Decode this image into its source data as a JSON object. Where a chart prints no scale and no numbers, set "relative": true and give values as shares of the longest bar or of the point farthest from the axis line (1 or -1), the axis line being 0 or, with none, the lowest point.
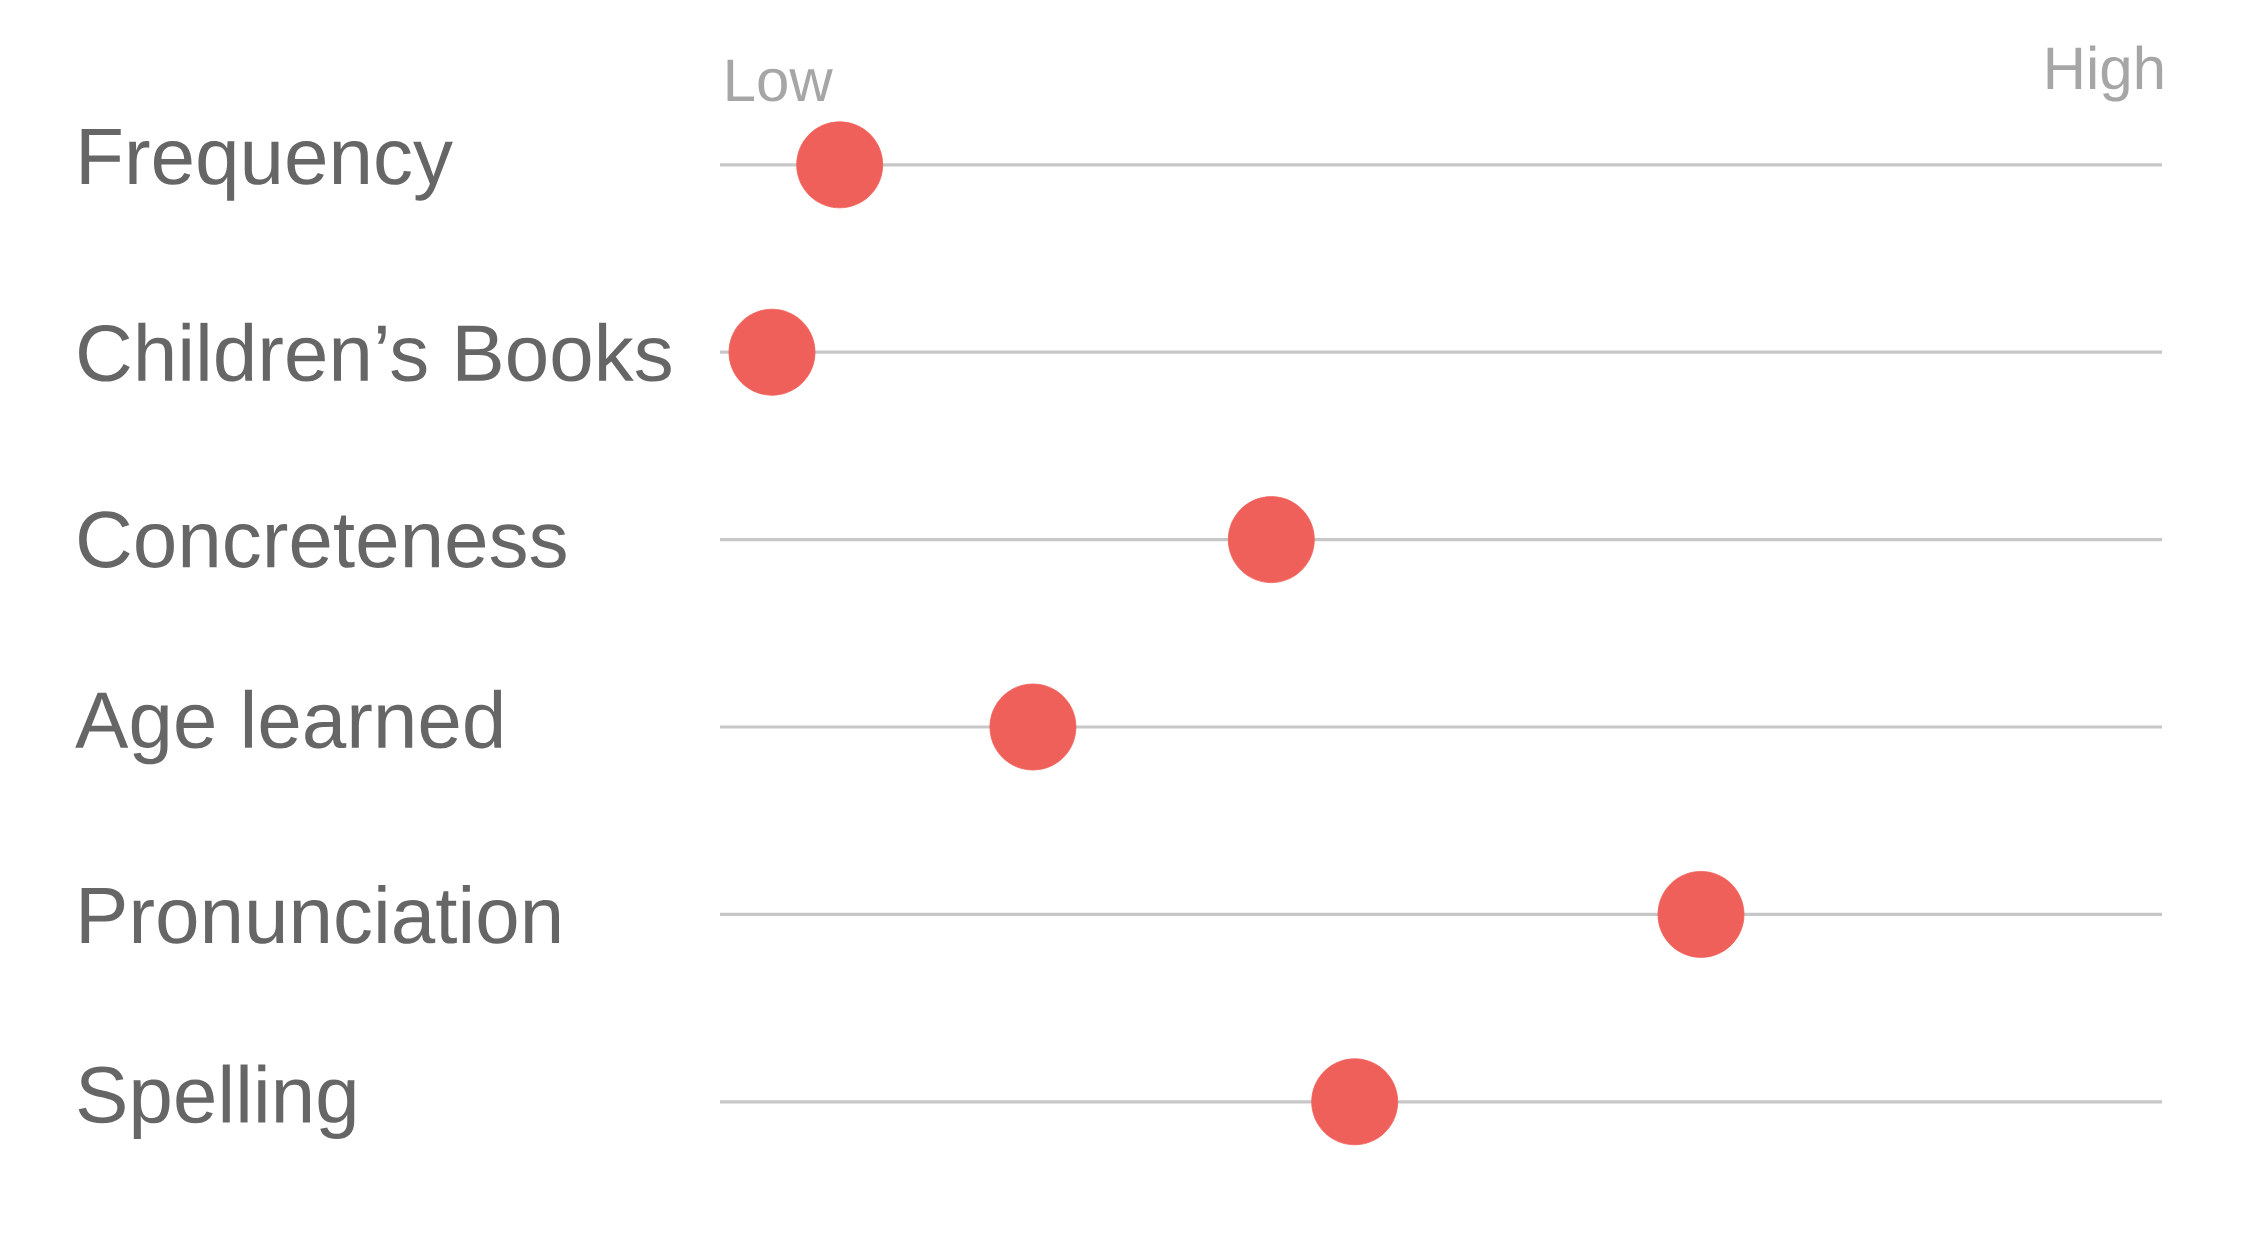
{
  "chart_data": {
    "type": "scatter",
    "orientation": "horizontal",
    "relative": true,
    "categories": [
      "Frequency",
      "Children’s Books",
      "Concreteness",
      "Age learned",
      "Pronunciation",
      "Spelling"
    ],
    "values": [
      0.122,
      0.053,
      0.562,
      0.319,
      1,
      0.647
    ],
    "color": "#f0605a",
    "annotations": [
      "Low",
      "High"
    ],
    "grid": "y",
    "marker": "circle"
  }
}
